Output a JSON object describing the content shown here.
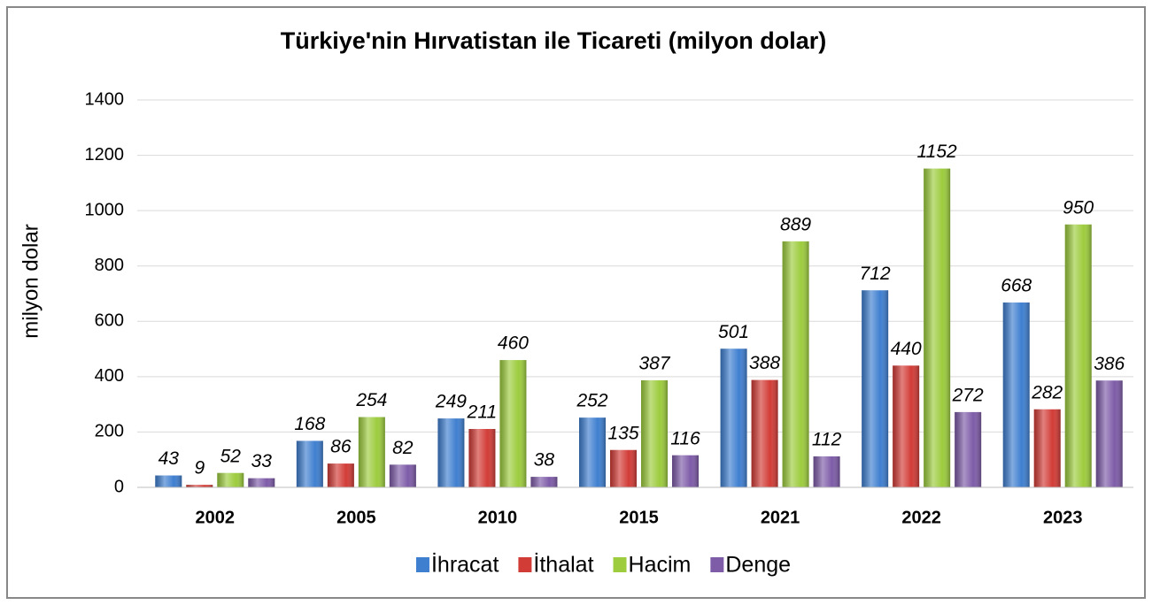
{
  "chart_data": {
    "type": "bar",
    "title": "Türkiye'nin Hırvatistan ile Ticareti (milyon dolar)",
    "y_label": "milyon dolar",
    "categories": [
      "2002",
      "2005",
      "2010",
      "2015",
      "2021",
      "2022",
      "2023"
    ],
    "series": [
      {
        "name": "İhracat",
        "color": "#3f7fd0",
        "values": [
          43,
          168,
          249,
          252,
          501,
          712,
          668
        ]
      },
      {
        "name": "İthalat",
        "color": "#d23c37",
        "values": [
          9,
          86,
          211,
          135,
          388,
          440,
          282
        ]
      },
      {
        "name": "Hacim",
        "color": "#9dcc3e",
        "values": [
          52,
          254,
          460,
          387,
          889,
          1152,
          950
        ]
      },
      {
        "name": "Denge",
        "color": "#7e5ca8",
        "values": [
          33,
          82,
          38,
          116,
          112,
          272,
          386
        ]
      }
    ],
    "ylim": [
      0,
      1400
    ],
    "yticks": [
      0,
      200,
      400,
      600,
      800,
      1000,
      1200,
      1400
    ],
    "grid": true,
    "legend": "bottom"
  }
}
